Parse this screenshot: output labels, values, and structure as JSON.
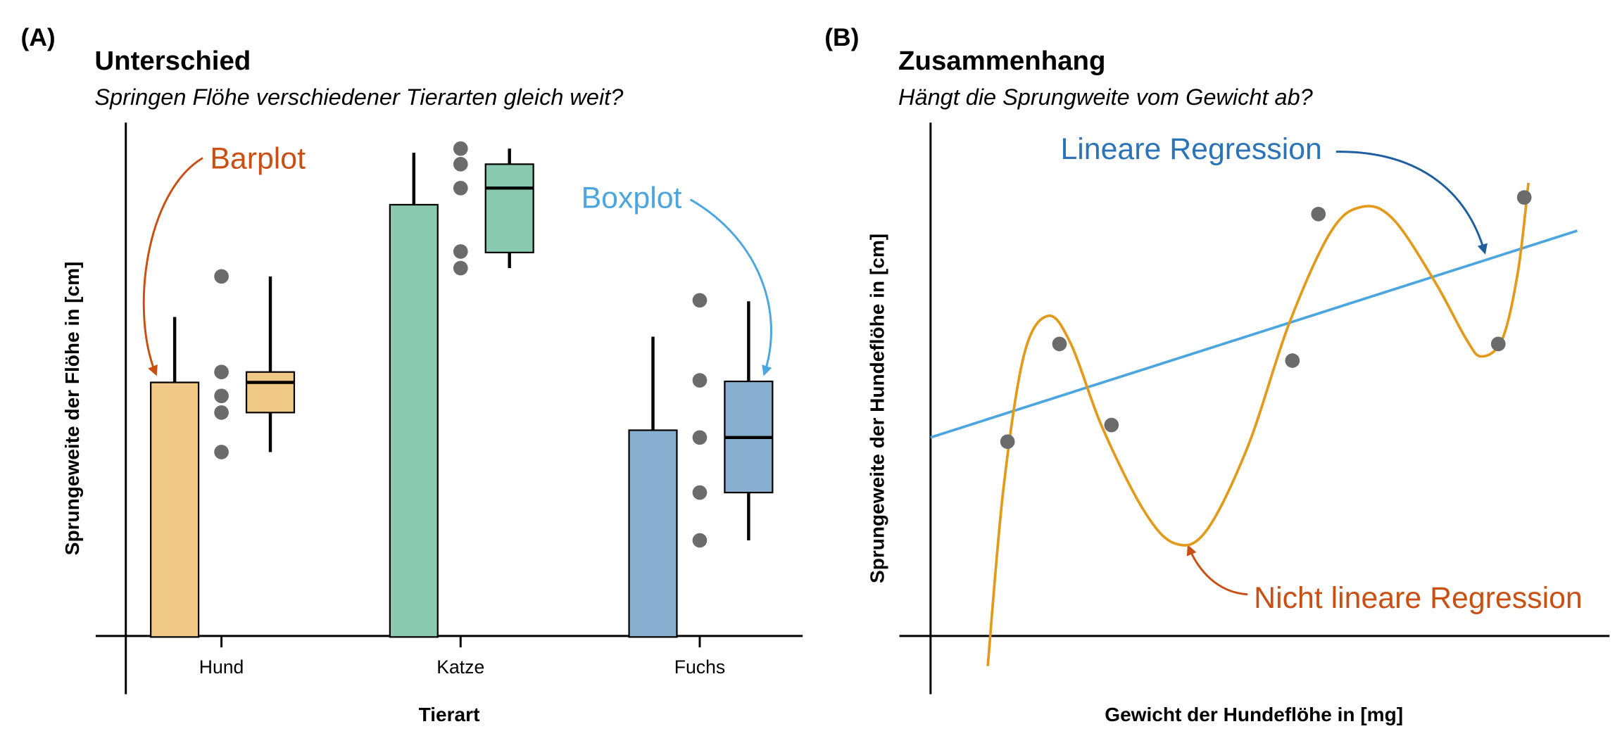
{
  "chart_data": [
    {
      "type": "barbox",
      "panel_label": "(A)",
      "title": "Unterschied",
      "subtitle": "Springen Flöhe verschiedener Tierarten gleich weit?",
      "x_label": "Tierart",
      "y_label": "Sprungeweite der Flöhe in [cm]",
      "categories": [
        "Hund",
        "Katze",
        "Fuchs"
      ],
      "colors": [
        "#f0c987",
        "#88c9b0",
        "#88aed0"
      ],
      "values": [
        49,
        83.2,
        39.8
      ],
      "error": [
        12.6,
        10,
        18
      ],
      "points": [
        [
          69.4,
          51,
          46.4,
          43.2,
          35.6
        ],
        [
          94,
          91,
          86.4,
          74.2,
          71
        ],
        [
          64.8,
          49.4,
          38.4,
          27.8,
          18.6
        ]
      ],
      "boxes": [
        {
          "low": 35.6,
          "q1": 43.2,
          "median": 49,
          "q3": 51,
          "high": 69.4
        },
        {
          "low": 71,
          "q1": 74,
          "median": 86.4,
          "q3": 91,
          "high": 94
        },
        {
          "low": 18.6,
          "q1": 27.8,
          "median": 38.4,
          "q3": 49.2,
          "high": 64.6
        }
      ],
      "ylim": [
        -11,
        99
      ],
      "annotations": [
        {
          "text": "Barplot",
          "color": "#c94f12"
        },
        {
          "text": "Boxplot",
          "color": "#4ba6e0"
        }
      ]
    },
    {
      "type": "scatter",
      "panel_label": "(B)",
      "title": "Zusammenhang",
      "subtitle": "Hängt die Sprungweite vom Gewicht ab?",
      "x_label": "Gewicht der Hundeflöhe in [mg]",
      "y_label": "Sprungeweite der Hundeflöhe in [cm]",
      "x": [
        14.8,
        24.8,
        34.8,
        69.6,
        74.6,
        109.2,
        114.2
      ],
      "y": [
        37.6,
        56.4,
        40.8,
        53.2,
        81.4,
        56.4,
        84.6
      ],
      "color": "#6b6b6b",
      "xlim": [
        0,
        130
      ],
      "ylim": [
        -11,
        99
      ],
      "lines": [
        {
          "name": "Lineare Regression",
          "color": "#4ba6e0",
          "x": [
            0,
            124.4
          ],
          "y": [
            38.4,
            78.2
          ]
        },
        {
          "name": "Nicht lineare Regression",
          "color": "#e39a1a",
          "x": [
            11,
            14,
            18,
            22.6,
            27,
            33,
            41,
            47,
            53,
            61,
            69,
            77,
            83,
            89,
            97,
            103,
            106,
            110,
            113,
            115
          ],
          "y": [
            -5.6,
            28.4,
            54.4,
            61.8,
            56.4,
            40.4,
            24.4,
            18,
            20.4,
            36.6,
            60.4,
            78,
            82.8,
            80.4,
            68.4,
            57.4,
            54,
            57.4,
            70.4,
            87.4
          ]
        }
      ],
      "annotation_colors": [
        "#2b74b8",
        "#c94f12"
      ]
    }
  ]
}
